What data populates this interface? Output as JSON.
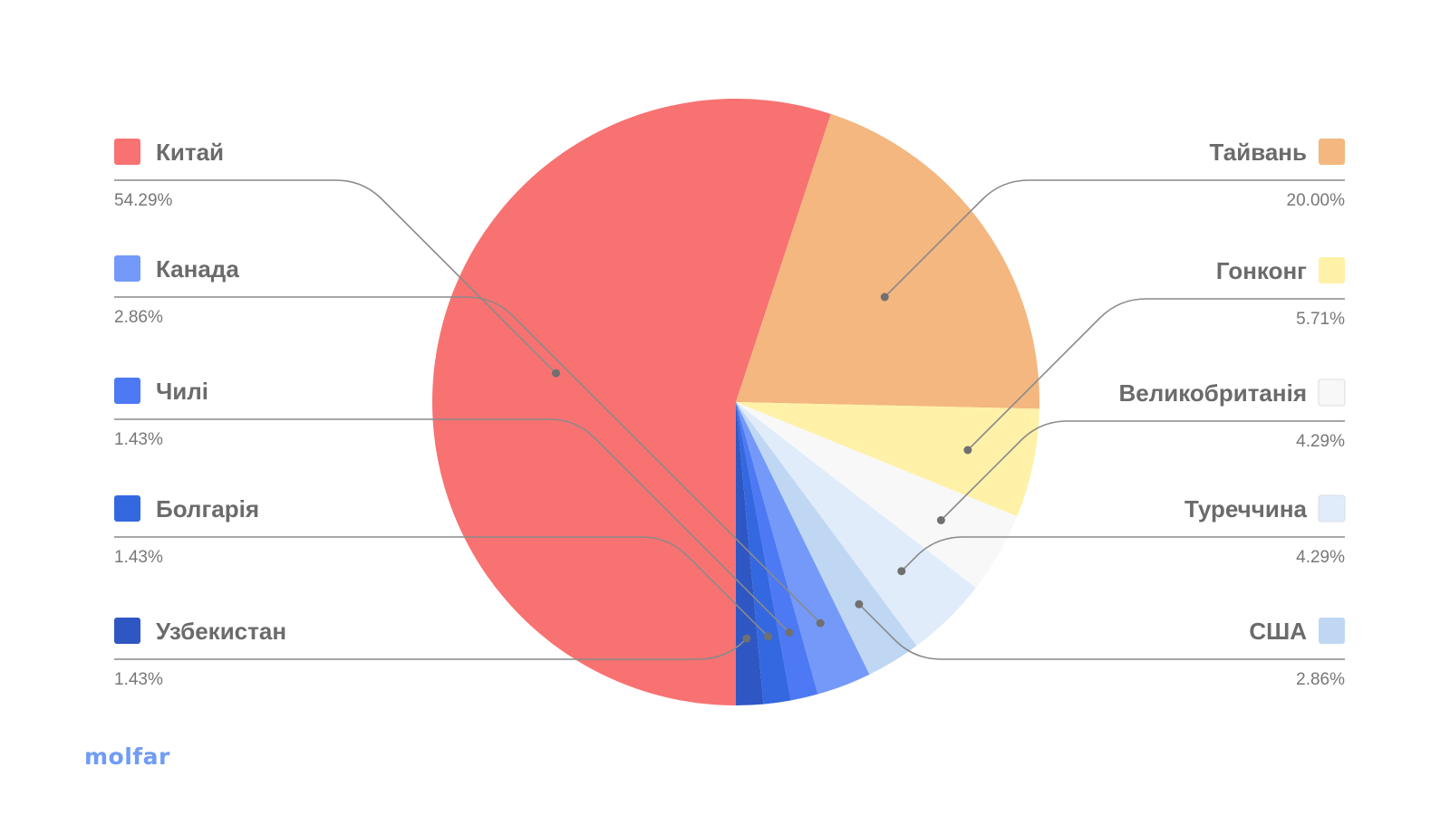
{
  "chart_data": {
    "type": "pie",
    "start_angle_deg": 90,
    "direction": "counter-clockwise from 6 o'clock",
    "slices": [
      {
        "label": "Китай",
        "value": 54.29,
        "display": "54.29%",
        "color": "#f87272",
        "legend_side": "left"
      },
      {
        "label": "Тайвань",
        "value": 20.0,
        "display": "20.00%",
        "color": "#f3b77f",
        "legend_side": "right"
      },
      {
        "label": "Гонконг",
        "value": 5.71,
        "display": "5.71%",
        "color": "#fff1a7",
        "legend_side": "right"
      },
      {
        "label": "Великобританія",
        "value": 4.29,
        "display": "4.29%",
        "color": "#f8f8f8",
        "legend_side": "right"
      },
      {
        "label": "Туреччина",
        "value": 4.29,
        "display": "4.29%",
        "color": "#e1ecfa",
        "legend_side": "right"
      },
      {
        "label": "США",
        "value": 2.86,
        "display": "2.86%",
        "color": "#c0d7f3",
        "legend_side": "right"
      },
      {
        "label": "Канада",
        "value": 2.86,
        "display": "2.86%",
        "color": "#7499f8",
        "legend_side": "left"
      },
      {
        "label": "Чилі",
        "value": 1.43,
        "display": "1.43%",
        "color": "#4d79f4",
        "legend_side": "left"
      },
      {
        "label": "Болгарія",
        "value": 1.43,
        "display": "1.43%",
        "color": "#3468e0",
        "legend_side": "left"
      },
      {
        "label": "Узбекистан",
        "value": 1.43,
        "display": "1.43%",
        "color": "#2f57c3",
        "legend_side": "left"
      }
    ],
    "legend_placement": "split left and right, with leader lines"
  },
  "branding": {
    "logo_text": "molfar",
    "logo_color": "#6f9cf6"
  }
}
